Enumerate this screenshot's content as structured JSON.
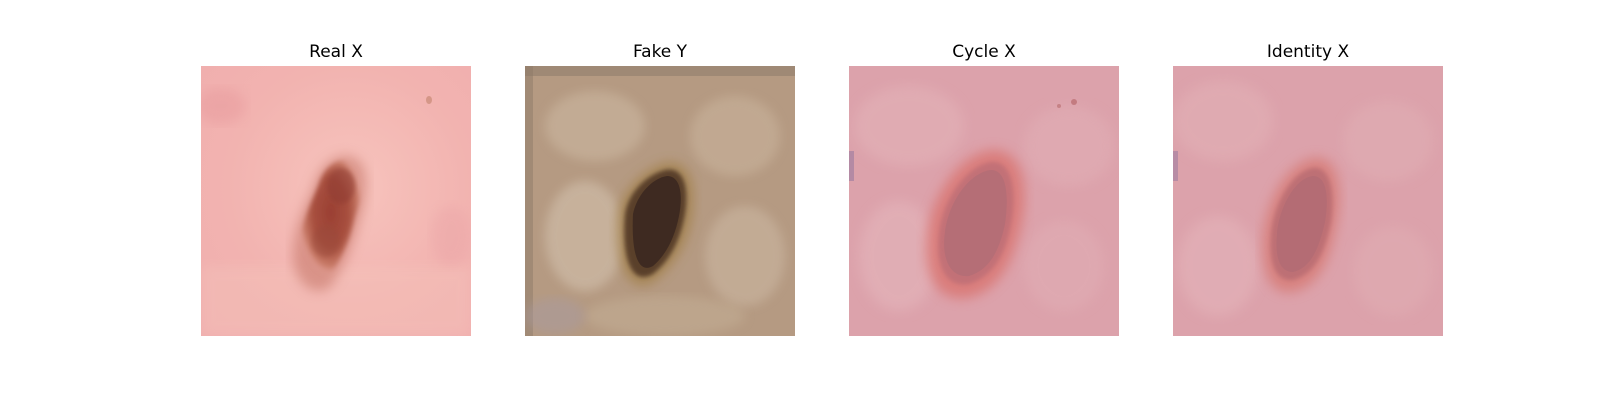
{
  "figure": {
    "panels": [
      {
        "title": "Real X"
      },
      {
        "title": "Fake Y"
      },
      {
        "title": "Cycle X"
      },
      {
        "title": "Identity X"
      }
    ]
  },
  "colors": {
    "real_x_skin": "#f2b3b0",
    "real_x_lesion": "#a24c3e",
    "fake_y_skin": "#b59a82",
    "fake_y_lesion": "#3e2a21",
    "fake_y_ring": "#9b7a48",
    "cycle_x_skin": "#dca2ab",
    "cycle_x_lesion": "#b56e76",
    "cycle_x_halo": "#d9716c",
    "identity_x_skin": "#dca2ab",
    "identity_x_lesion": "#b46c74",
    "identity_x_halo": "#d6756d"
  }
}
